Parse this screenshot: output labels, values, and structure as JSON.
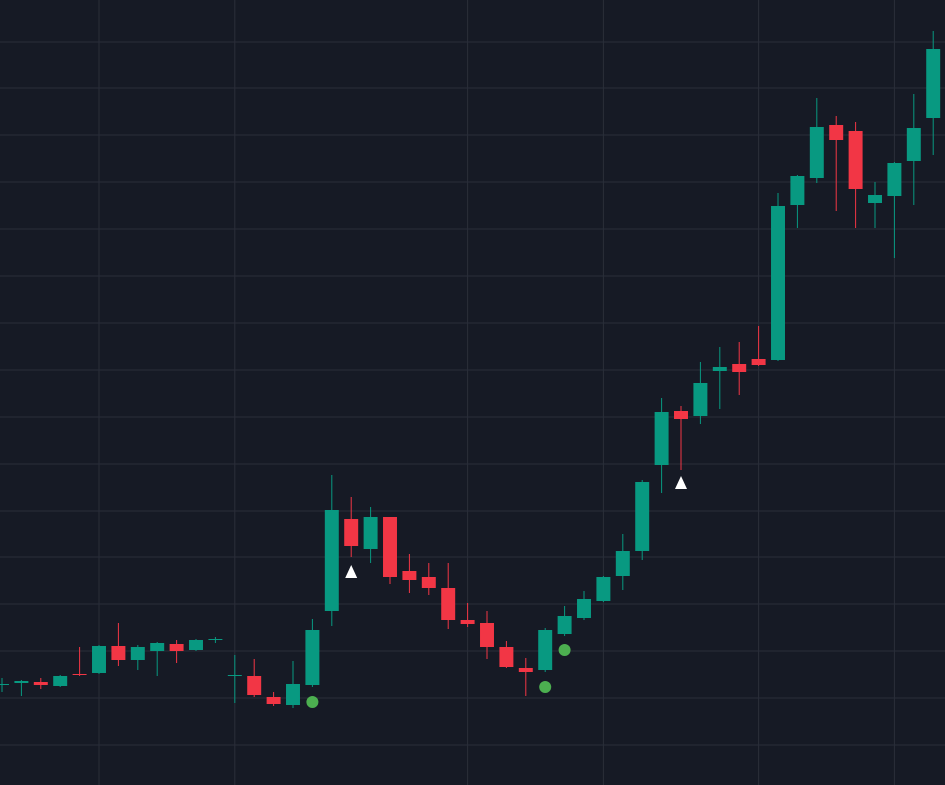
{
  "chart_data": {
    "type": "candlestick",
    "background": "#161a25",
    "grid": true,
    "grid_color": "#2a2e39",
    "up_color": "#089981",
    "down_color": "#f23645",
    "xlim": [
      -0.103,
      48.608
    ],
    "ylim": [
      0,
      785
    ],
    "xticks": [
      5,
      12,
      24,
      31,
      39,
      46
    ],
    "yticks": [
      40,
      87,
      134,
      181,
      228,
      274,
      321,
      368,
      415,
      462,
      509,
      556,
      603,
      650,
      697,
      743
    ],
    "open": [
      100,
      102,
      103,
      99,
      111,
      112,
      139,
      125,
      134,
      141,
      135,
      145,
      109,
      109,
      88,
      80,
      100,
      174,
      266,
      236,
      268,
      214,
      208,
      197,
      165,
      162,
      138,
      117,
      115,
      151,
      167,
      184,
      209,
      234,
      320,
      374,
      369,
      414,
      421,
      426,
      425,
      580,
      607,
      660,
      654,
      582,
      589,
      624,
      667
    ],
    "high": [
      107,
      105,
      107,
      110,
      138,
      140,
      162,
      140,
      143,
      145,
      146,
      148,
      130,
      126,
      93,
      124,
      166,
      310,
      288,
      278,
      268,
      231,
      222,
      222,
      182,
      174,
      144,
      127,
      157,
      179,
      194,
      209,
      251,
      305,
      387,
      379,
      423,
      438,
      443,
      459,
      592,
      610,
      687,
      669,
      663,
      603,
      623,
      691,
      754
    ],
    "low": [
      93,
      89,
      96,
      98,
      109,
      111,
      119,
      115,
      109,
      122,
      134,
      142,
      82,
      88,
      79,
      77,
      98,
      159,
      228,
      222,
      201,
      192,
      190,
      156,
      158,
      126,
      117,
      89,
      113,
      149,
      165,
      183,
      195,
      225,
      292,
      315,
      361,
      376,
      390,
      419,
      424,
      557,
      602,
      574,
      557,
      557,
      527,
      580,
      630
    ],
    "close": [
      101,
      104,
      100,
      109,
      110,
      139,
      125,
      138,
      142,
      134,
      145,
      146,
      110,
      90,
      81,
      101,
      155,
      275,
      239,
      268,
      208,
      205,
      197,
      165,
      161,
      138,
      118,
      113,
      155,
      169,
      186,
      208,
      234,
      303,
      373,
      366,
      402,
      418,
      413,
      420,
      579,
      609,
      658,
      645,
      596,
      590,
      622,
      657,
      736
    ],
    "signals": [
      {
        "shape": "triangle",
        "color": "#ffffff",
        "x": [
          18,
          35
        ],
        "values": [
          213,
          302
        ]
      },
      {
        "shape": "circle",
        "color": "#4caf50",
        "x": [
          16,
          28,
          29
        ],
        "values": [
          83,
          98,
          135
        ]
      }
    ]
  }
}
